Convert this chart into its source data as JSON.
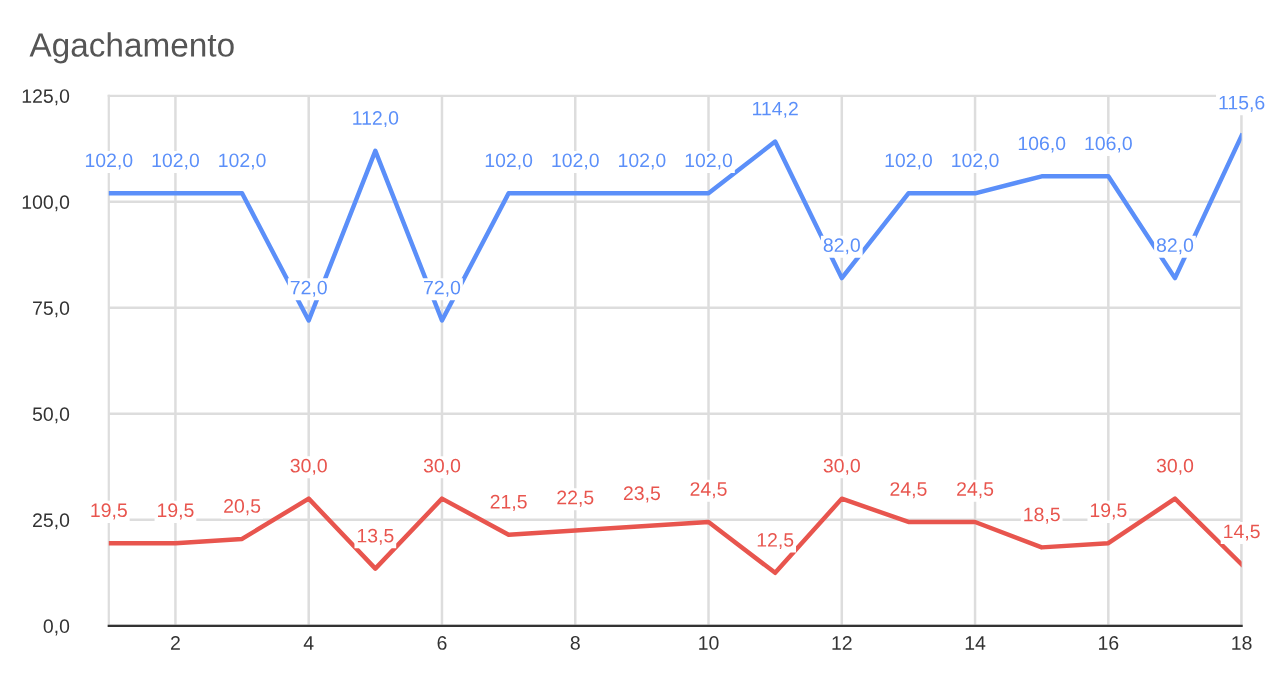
{
  "chart_data": {
    "type": "line",
    "title": "Agachamento",
    "x": [
      1,
      2,
      3,
      4,
      5,
      6,
      7,
      8,
      9,
      10,
      11,
      12,
      13,
      14,
      15,
      16,
      17,
      18
    ],
    "series": [
      {
        "color": "#5b8ff9",
        "values": [
          102,
          102,
          102,
          72,
          112,
          72,
          102,
          102,
          102,
          102,
          114.2,
          82,
          102,
          102,
          106,
          106,
          82,
          115.6
        ],
        "value_labels": [
          "102,0",
          "102,0",
          "102,0",
          "72,0",
          "112,0",
          "72,0",
          "102,0",
          "102,0",
          "102,0",
          "102,0",
          "114,2",
          "82,0",
          "102,0",
          "102,0",
          "106,0",
          "106,0",
          "82,0",
          "115,6"
        ]
      },
      {
        "color": "#e8554e",
        "values": [
          19.5,
          19.5,
          20.5,
          30,
          13.5,
          30,
          21.5,
          22.5,
          23.5,
          24.5,
          12.5,
          30,
          24.5,
          24.5,
          18.5,
          19.5,
          30,
          14.5
        ],
        "value_labels": [
          "19,5",
          "19,5",
          "20,5",
          "30,0",
          "13,5",
          "30,0",
          "21,5",
          "22,5",
          "23,5",
          "24,5",
          "12,5",
          "30,0",
          "24,5",
          "24,5",
          "18,5",
          "19,5",
          "30,0",
          "14,5"
        ]
      }
    ],
    "xlim": [
      1,
      18
    ],
    "xticks": [
      2,
      4,
      6,
      8,
      10,
      12,
      14,
      16,
      18
    ],
    "ylim": [
      0,
      125
    ],
    "yticks": [
      {
        "value": 0,
        "label": "0,0"
      },
      {
        "value": 25,
        "label": "25,0"
      },
      {
        "value": 50,
        "label": "50,0"
      },
      {
        "value": 75,
        "label": "75,0"
      },
      {
        "value": 100,
        "label": "100,0"
      },
      {
        "value": 125,
        "label": "125,0"
      }
    ],
    "grid": true,
    "marker": "none",
    "line_style": "solid",
    "legend": false
  }
}
